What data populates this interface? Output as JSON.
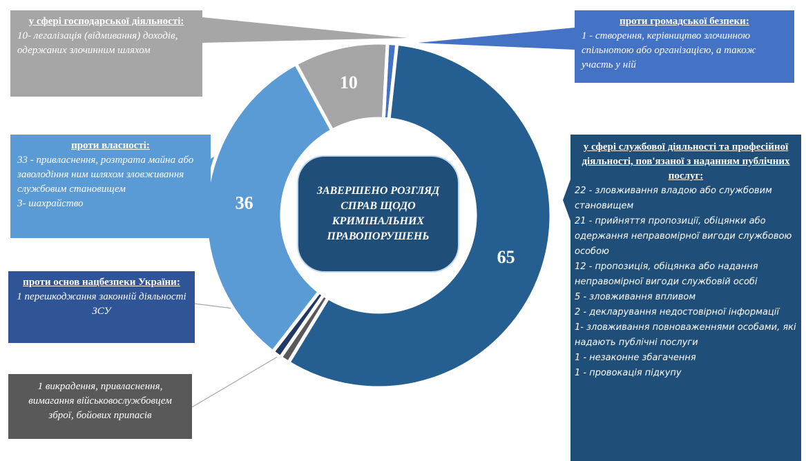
{
  "chart_data": {
    "type": "donut",
    "center_label": "ЗАВЕРШЕНО РОЗГЛЯД СПРАВ ЩОДО КРИМІНАЛЬНИХ ПРАВОПОРУШЕНЬ",
    "categories": [
      "проти громадської безпеки:",
      "у сфері службової діяльності та професійної діяльності, пов'язаної з наданням публічних послуг:",
      null,
      "проти основ нацбезпеки України:",
      "проти власності:",
      "у сфері господарської діяльності:"
    ],
    "values": [
      1,
      65,
      1,
      1,
      36,
      10
    ],
    "colors": [
      "#4472c4",
      "#255e91",
      "#595959",
      "#203864",
      "#5b9bd5",
      "#a5a5a5"
    ],
    "descriptions": [
      [
        "1 - створення, керівництво злочинною спільнотою або організацією, а також участь у ній"
      ],
      [
        "22 - зловживання владою або службовим становищем",
        "21 - прийняття пропозиції, обіцянки або одержання неправомірної вигоди службовою особою",
        "12 - пропозиція, обіцянка або надання неправомірної вигоди службовій особі",
        "5 - зловживання впливом",
        "2 - декларування недостовірної інформації",
        "1- зловживання повноваженнями особами, які надають публічні послуги",
        "1 - незаконне збагачення",
        "1 - провокація підкупу"
      ],
      [
        "1 викрадення, привласнення, вимагання військовослужбовцем зброї, бойових припасів"
      ],
      [
        "1 перешкоджання законній діяльності ЗСУ"
      ],
      [
        "33 - привласнення, розтрата майна або заволодіння ним шляхом зловживання службовим становищем",
        "3- шахрайство"
      ],
      [
        "10- легалізація (відмивання) доходів, одержаних злочинним шляхом"
      ]
    ]
  }
}
